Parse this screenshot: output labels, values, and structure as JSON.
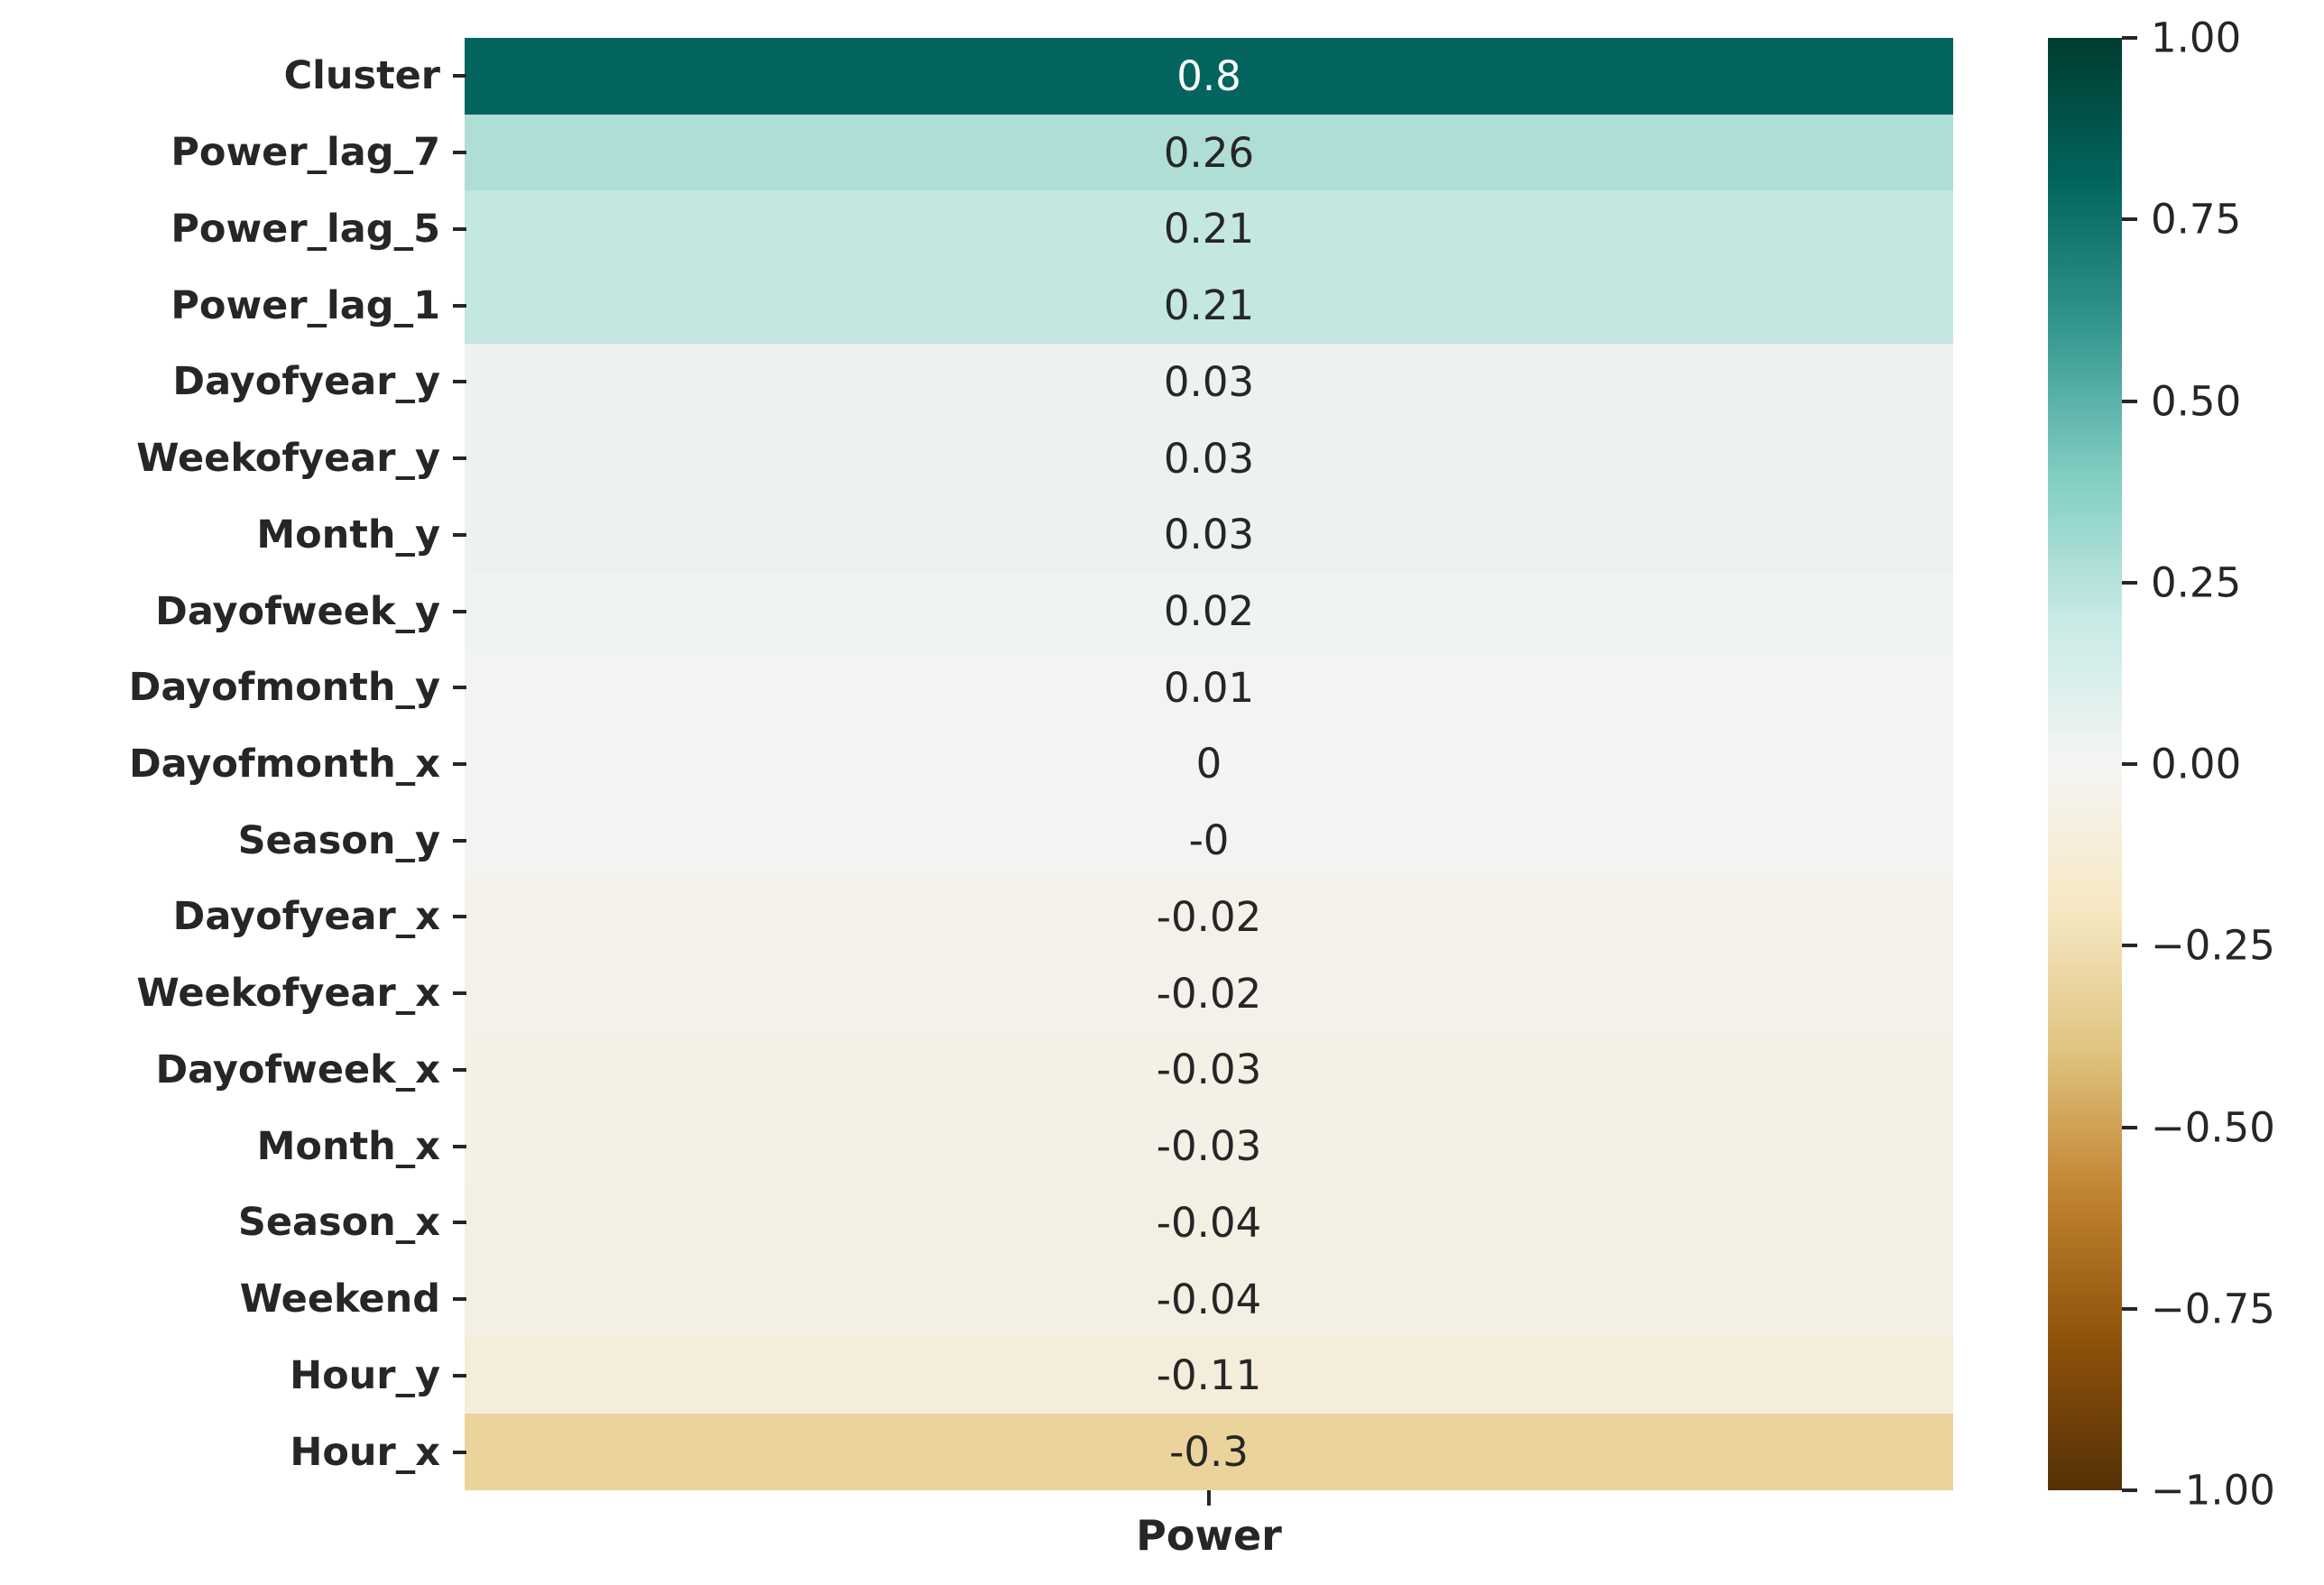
{
  "figure": {
    "background": "#ffffff",
    "text_color": "#262626"
  },
  "chart_data": {
    "type": "heatmap",
    "title": "",
    "xlabel": "Power",
    "ylabel": "",
    "x_categories": [
      "Power"
    ],
    "categories": [
      "Cluster",
      "Power_lag_7",
      "Power_lag_5",
      "Power_lag_1",
      "Dayofyear_y",
      "Weekofyear_y",
      "Month_y",
      "Dayofweek_y",
      "Dayofmonth_y",
      "Dayofmonth_x",
      "Season_y",
      "Dayofyear_x",
      "Weekofyear_x",
      "Dayofweek_x",
      "Month_x",
      "Season_x",
      "Weekend",
      "Hour_y",
      "Hour_x"
    ],
    "values": [
      0.8,
      0.26,
      0.21,
      0.21,
      0.03,
      0.03,
      0.03,
      0.02,
      0.01,
      0,
      -0.0,
      -0.02,
      -0.02,
      -0.03,
      -0.03,
      -0.04,
      -0.04,
      -0.11,
      -0.3
    ],
    "annotations": [
      "0.8",
      "0.26",
      "0.21",
      "0.21",
      "0.03",
      "0.03",
      "0.03",
      "0.02",
      "0.01",
      "0",
      "-0",
      "-0.02",
      "-0.02",
      "-0.03",
      "-0.03",
      "-0.04",
      "-0.04",
      "-0.11",
      "-0.3"
    ],
    "cell_colors": [
      "#03655E",
      "#AFDED6",
      "#C4E7E1",
      "#C4E7E1",
      "#EDF2F1",
      "#EDF2F1",
      "#EDF2F1",
      "#EFF3F2",
      "#F1F4F3",
      "#F3F5F3",
      "#F3F4F1",
      "#F4F1EA",
      "#F4F1EA",
      "#F4F0E6",
      "#F4F0E6",
      "#F4EFE3",
      "#F4EFE3",
      "#F5EDDB",
      "#EAD49B"
    ],
    "text_colors": [
      "#FFFFFF",
      "#262626",
      "#262626",
      "#262626",
      "#262626",
      "#262626",
      "#262626",
      "#262626",
      "#262626",
      "#262626",
      "#262626",
      "#262626",
      "#262626",
      "#262626",
      "#262626",
      "#262626",
      "#262626",
      "#262626",
      "#262626"
    ],
    "grid": false,
    "colormap": "BrBG",
    "vmin": -1,
    "vmax": 1,
    "colorbar": {
      "position": "right",
      "tick_labels": [
        "1.00",
        "0.75",
        "0.50",
        "0.25",
        "0.00",
        "−0.25",
        "−0.50",
        "−0.75",
        "−1.00"
      ],
      "tick_values": [
        1.0,
        0.75,
        0.5,
        0.25,
        0.0,
        -0.25,
        -0.5,
        -0.75,
        -1.0
      ],
      "gradient_stops_bottom_to_top": [
        {
          "pos": 0.0,
          "color": "#543005"
        },
        {
          "pos": 0.1,
          "color": "#8C510A"
        },
        {
          "pos": 0.2,
          "color": "#BF812D"
        },
        {
          "pos": 0.3,
          "color": "#DFC27D"
        },
        {
          "pos": 0.4,
          "color": "#F6E8C3"
        },
        {
          "pos": 0.5,
          "color": "#F5F5F5"
        },
        {
          "pos": 0.6,
          "color": "#C7EAE5"
        },
        {
          "pos": 0.7,
          "color": "#80CDC1"
        },
        {
          "pos": 0.8,
          "color": "#35978F"
        },
        {
          "pos": 0.9,
          "color": "#01665E"
        },
        {
          "pos": 1.0,
          "color": "#003C30"
        }
      ]
    }
  }
}
